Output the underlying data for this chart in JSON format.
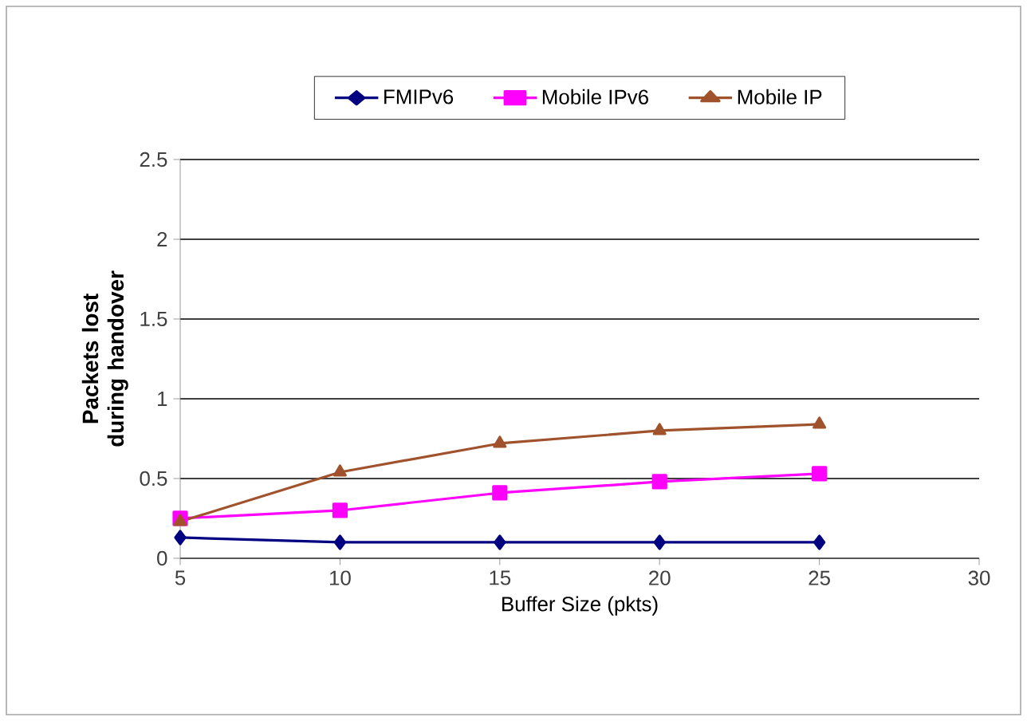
{
  "chart_data": {
    "type": "line",
    "xlabel": "Buffer Size (pkts)",
    "ylabel": "Packets lost during handover",
    "x": [
      5,
      10,
      15,
      20,
      25
    ],
    "series": [
      {
        "name": "FMIPv6",
        "color": "#000080",
        "marker": "diamond",
        "values": [
          0.13,
          0.1,
          0.1,
          0.1,
          0.1
        ]
      },
      {
        "name": "Mobile IPv6",
        "color": "#ff00ff",
        "marker": "square",
        "values": [
          0.25,
          0.3,
          0.41,
          0.48,
          0.53
        ]
      },
      {
        "name": "Mobile IP",
        "color": "#a0522d",
        "marker": "triangle",
        "values": [
          0.23,
          0.54,
          0.72,
          0.8,
          0.84
        ]
      }
    ],
    "xlim": [
      5,
      30
    ],
    "ylim": [
      0,
      2.5
    ],
    "xticks": [
      5,
      10,
      15,
      20,
      25,
      30
    ],
    "yticks": [
      0,
      0.5,
      1,
      1.5,
      2,
      2.5
    ],
    "grid": "y",
    "legend": "top",
    "line_style": "solid"
  }
}
